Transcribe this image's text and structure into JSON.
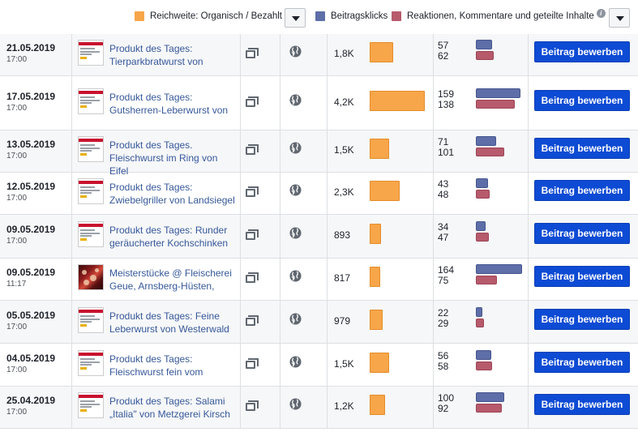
{
  "legend": {
    "reach_label": "Reichweite: Organisch / Bezahlt",
    "clicks_label": "Beitragsklicks",
    "reactions_label": "Reaktionen, Kommentare und geteilte Inhalte",
    "colors": {
      "reach": "#f7a64a",
      "clicks": "#5d6ea8",
      "reactions": "#b65a6c",
      "button": "#0e4bd4",
      "link": "#365899"
    }
  },
  "rows": [
    {
      "date": "21.05.2019",
      "time": "17:00",
      "title": "Produkt des Tages: Tierparkbratwurst von",
      "reach": "1,8K",
      "reach_value": 1800,
      "clicks": "57",
      "reactions": "62",
      "button": "Beitrag bewerben",
      "thumb": "flyer"
    },
    {
      "date": "17.05.2019",
      "time": "17:00",
      "title": "Produkt des Tages: Gutsherren-Leberwurst von",
      "reach": "4,2K",
      "reach_value": 4200,
      "clicks": "159",
      "reactions": "138",
      "button": "Beitrag bewerben",
      "thumb": "flyer"
    },
    {
      "date": "13.05.2019",
      "time": "17:00",
      "title": "Produkt des Tages. Fleischwurst im Ring von Eifel",
      "reach": "1,5K",
      "reach_value": 1500,
      "clicks": "71",
      "reactions": "101",
      "button": "Beitrag bewerben",
      "thumb": "flyer"
    },
    {
      "date": "12.05.2019",
      "time": "17:00",
      "title": "Produkt des Tages: Zwiebelgriller von Landsiegel",
      "reach": "2,3K",
      "reach_value": 2300,
      "clicks": "43",
      "reactions": "48",
      "button": "Beitrag bewerben",
      "thumb": "flyer"
    },
    {
      "date": "09.05.2019",
      "time": "17:00",
      "title": "Produkt des Tages: Runder geräucherter Kochschinken",
      "reach": "893",
      "reach_value": 893,
      "clicks": "34",
      "reactions": "47",
      "button": "Beitrag bewerben",
      "thumb": "flyer"
    },
    {
      "date": "09.05.2019",
      "time": "11:17",
      "title": "Meisterstücke @ Fleischerei Geue, Arnsberg-Hüsten,",
      "reach": "817",
      "reach_value": 817,
      "clicks": "164",
      "reactions": "75",
      "button": "Beitrag bewerben",
      "thumb": "photo"
    },
    {
      "date": "05.05.2019",
      "time": "17:00",
      "title": "Produkt des Tages: Feine Leberwurst von Westerwald",
      "reach": "979",
      "reach_value": 979,
      "clicks": "22",
      "reactions": "29",
      "button": "Beitrag bewerben",
      "thumb": "flyer"
    },
    {
      "date": "04.05.2019",
      "time": "17:00",
      "title": "Produkt des Tages: Fleischwurst fein vom",
      "reach": "1,5K",
      "reach_value": 1500,
      "clicks": "56",
      "reactions": "58",
      "button": "Beitrag bewerben",
      "thumb": "flyer"
    },
    {
      "date": "25.04.2019",
      "time": "17:00",
      "title": "Produkt des Tages: Salami „Italia\" von Metzgerei Kirsch",
      "reach": "1,2K",
      "reach_value": 1200,
      "clicks": "100",
      "reactions": "92",
      "button": "Beitrag bewerben",
      "thumb": "flyer"
    }
  ]
}
